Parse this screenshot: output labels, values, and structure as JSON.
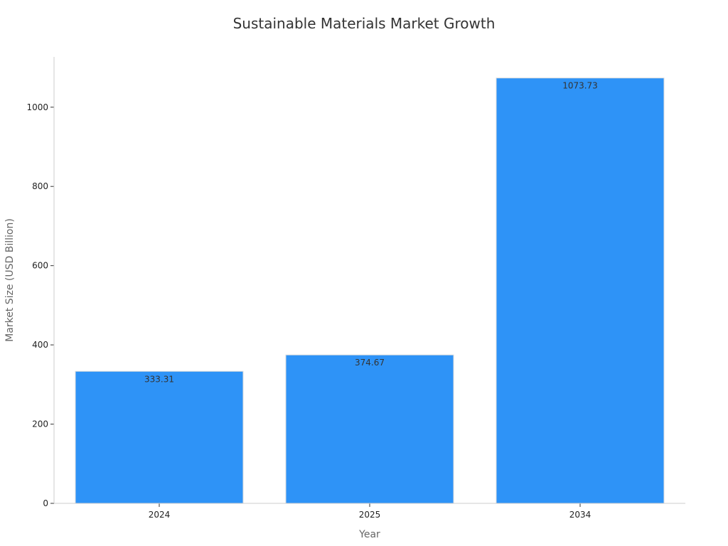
{
  "chart_data": {
    "type": "bar",
    "title": "Sustainable Materials Market Growth",
    "xlabel": "Year",
    "ylabel": "Market Size (USD Billion)",
    "categories": [
      "2024",
      "2025",
      "2034"
    ],
    "values": [
      333.31,
      374.67,
      1073.73
    ],
    "data_labels": [
      "333.31",
      "374.67",
      "1073.73"
    ],
    "ylim": [
      0,
      1127
    ],
    "yticks": [
      0,
      200,
      400,
      600,
      800,
      1000
    ],
    "grid": false,
    "legend": "none",
    "bar_color": "#2E93F7"
  }
}
